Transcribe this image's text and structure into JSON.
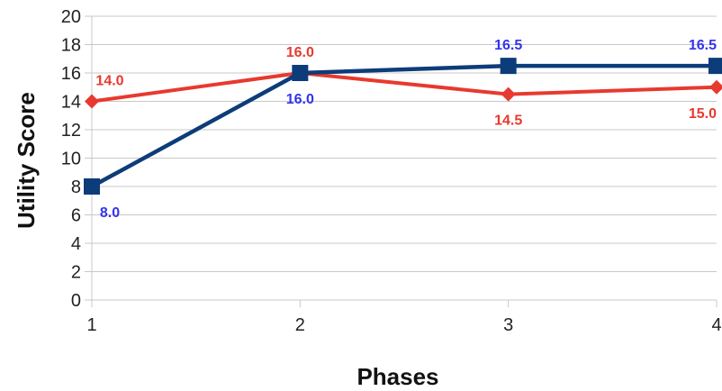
{
  "chart_data": {
    "type": "line",
    "xlabel": "Phases",
    "ylabel": "Utility Score",
    "x": [
      1,
      2,
      3,
      4
    ],
    "xlim": [
      1,
      4
    ],
    "ylim": [
      0,
      20
    ],
    "yticks": [
      0,
      2,
      4,
      6,
      8,
      10,
      12,
      14,
      16,
      18,
      20
    ],
    "grid": {
      "horizontal": true,
      "vertical": false
    },
    "legend": "none",
    "series": [
      {
        "values": [
          14.0,
          16.0,
          14.5,
          15.0
        ],
        "labels": [
          "14.0",
          "16.0",
          "14.5",
          "15.0"
        ],
        "label_positions": [
          "above",
          "above",
          "below",
          "below"
        ],
        "color": "#e8392e",
        "label_color": "#e8392e",
        "marker": "diamond"
      },
      {
        "values": [
          8.0,
          16.0,
          16.5,
          16.5
        ],
        "labels": [
          "8.0",
          "16.0",
          "16.5",
          "16.5"
        ],
        "label_positions": [
          "below",
          "below",
          "above",
          "above"
        ],
        "color": "#0d3c7a",
        "label_color": "#3333ee",
        "marker": "square"
      }
    ]
  }
}
